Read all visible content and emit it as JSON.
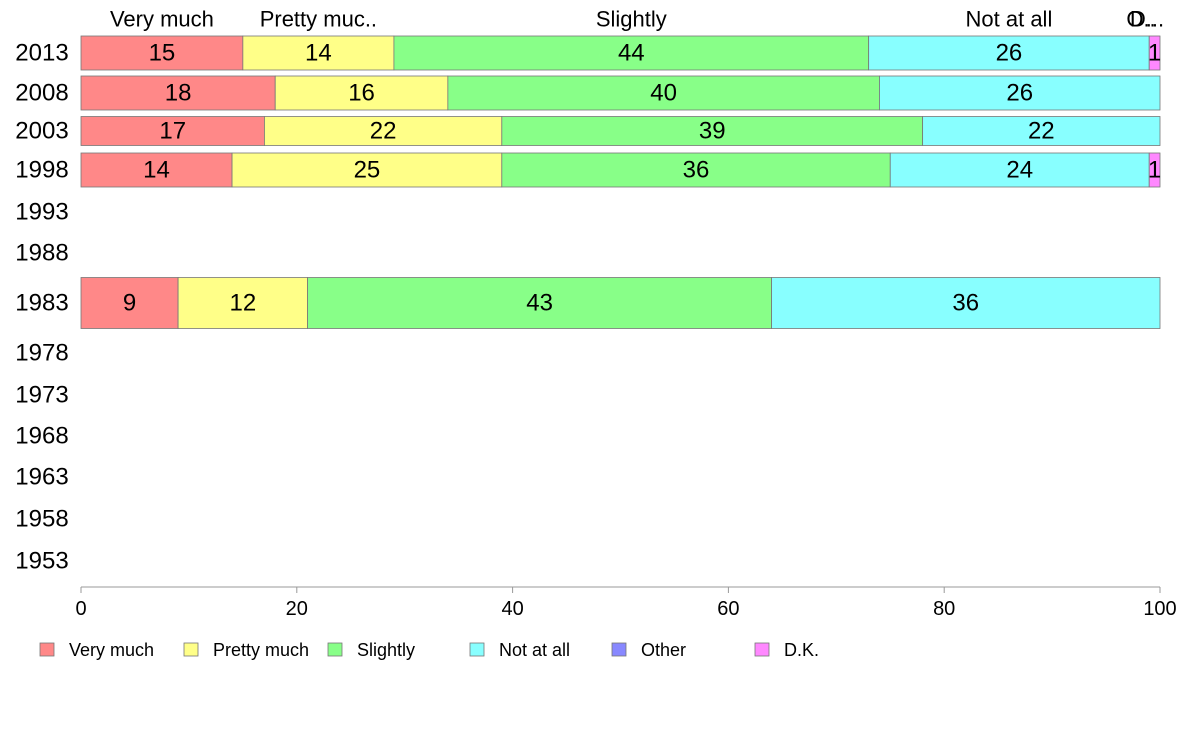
{
  "chart_data": {
    "type": "bar",
    "orientation": "horizontal",
    "stacked": true,
    "categories": [
      "2013",
      "2008",
      "2003",
      "1998",
      "1993",
      "1988",
      "1983",
      "1978",
      "1973",
      "1968",
      "1963",
      "1958",
      "1953"
    ],
    "series": [
      {
        "name": "Very much",
        "color": "#ff8888",
        "values": [
          15,
          18,
          17,
          14,
          null,
          null,
          9,
          null,
          null,
          null,
          null,
          null,
          null
        ]
      },
      {
        "name": "Pretty much",
        "color": "#ffff88",
        "values": [
          14,
          16,
          22,
          25,
          null,
          null,
          12,
          null,
          null,
          null,
          null,
          null,
          null
        ]
      },
      {
        "name": "Slightly",
        "color": "#88ff88",
        "values": [
          44,
          40,
          39,
          36,
          null,
          null,
          43,
          null,
          null,
          null,
          null,
          null,
          null
        ]
      },
      {
        "name": "Not at all",
        "color": "#88ffff",
        "values": [
          26,
          26,
          22,
          24,
          null,
          null,
          36,
          null,
          null,
          null,
          null,
          null,
          null
        ]
      },
      {
        "name": "Other",
        "color": "#8888ff",
        "values": [
          0,
          0,
          0,
          0,
          null,
          null,
          0,
          null,
          null,
          null,
          null,
          null,
          null
        ]
      },
      {
        "name": "D.K.",
        "color": "#ff88ff",
        "values": [
          1,
          0,
          0,
          1,
          null,
          null,
          0,
          null,
          null,
          null,
          null,
          null,
          null
        ]
      }
    ],
    "top_labels": [
      "Very much",
      "Pretty muc..",
      "Slightly",
      "Not at all",
      "O..",
      "D..."
    ],
    "xlim": [
      0,
      100
    ],
    "xticks": [
      "0",
      "20",
      "40",
      "60",
      "80",
      "100"
    ],
    "legend_placement": "bottom",
    "grid": false
  }
}
